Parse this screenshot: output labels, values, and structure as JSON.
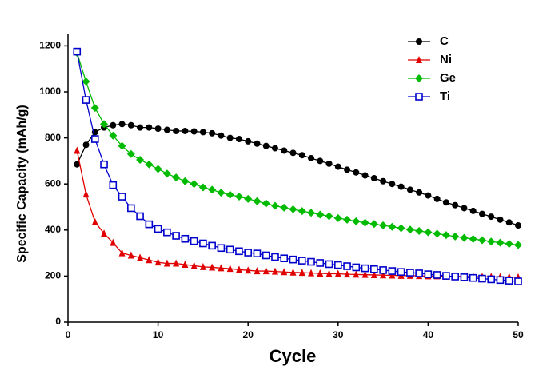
{
  "chart_data": {
    "type": "line",
    "x_label": "Cycle",
    "y_label": "Specific Capacity (mAh/g)",
    "x": [
      1,
      2,
      3,
      4,
      5,
      6,
      7,
      8,
      9,
      10,
      11,
      12,
      13,
      14,
      15,
      16,
      17,
      18,
      19,
      20,
      21,
      22,
      23,
      24,
      25,
      26,
      27,
      28,
      29,
      30,
      31,
      32,
      33,
      34,
      35,
      36,
      37,
      38,
      39,
      40,
      41,
      42,
      43,
      44,
      45,
      46,
      47,
      48,
      49,
      50
    ],
    "series": [
      {
        "name": "C",
        "color": "#000000",
        "marker": "circle",
        "values": [
          685,
          770,
          825,
          845,
          855,
          860,
          855,
          845,
          845,
          840,
          835,
          830,
          830,
          828,
          825,
          820,
          810,
          800,
          795,
          785,
          775,
          765,
          755,
          745,
          735,
          725,
          712,
          700,
          688,
          675,
          662,
          650,
          637,
          625,
          612,
          600,
          588,
          575,
          563,
          550,
          535,
          520,
          508,
          495,
          483,
          470,
          458,
          445,
          433,
          420
        ]
      },
      {
        "name": "Ni",
        "color": "#e00000",
        "marker": "triangle",
        "values": [
          745,
          555,
          435,
          385,
          345,
          300,
          290,
          280,
          270,
          260,
          255,
          255,
          250,
          245,
          240,
          238,
          235,
          232,
          228,
          225,
          222,
          222,
          220,
          218,
          216,
          215,
          213,
          212,
          210,
          210,
          208,
          207,
          206,
          205,
          204,
          203,
          202,
          202,
          201,
          200,
          200,
          199,
          199,
          198,
          198,
          197,
          197,
          196,
          196,
          195
        ]
      },
      {
        "name": "Ge",
        "color": "#00bb00",
        "marker": "diamond",
        "values": [
          1170,
          1045,
          930,
          860,
          810,
          765,
          730,
          705,
          685,
          665,
          645,
          628,
          612,
          600,
          585,
          575,
          562,
          553,
          545,
          535,
          525,
          515,
          505,
          497,
          490,
          482,
          475,
          467,
          460,
          452,
          445,
          438,
          432,
          426,
          420,
          414,
          408,
          402,
          396,
          390,
          384,
          378,
          372,
          366,
          361,
          356,
          350,
          345,
          340,
          335
        ]
      },
      {
        "name": "Ti",
        "color": "#0000cc",
        "marker": "open-square",
        "values": [
          1175,
          965,
          795,
          685,
          595,
          545,
          495,
          460,
          425,
          405,
          390,
          375,
          362,
          352,
          342,
          332,
          322,
          315,
          308,
          302,
          298,
          290,
          283,
          277,
          272,
          267,
          262,
          257,
          252,
          248,
          243,
          238,
          234,
          230,
          226,
          222,
          218,
          215,
          212,
          208,
          205,
          201,
          198,
          195,
          192,
          189,
          186,
          183,
          180,
          177
        ]
      }
    ],
    "xlim": [
      0,
      50
    ],
    "xticks": [
      0,
      10,
      20,
      30,
      40,
      50
    ],
    "ylim": [
      0,
      1250
    ],
    "yticks": [
      0,
      200,
      400,
      600,
      800,
      1000,
      1200
    ],
    "grid": false,
    "legend_position": "upper right"
  }
}
